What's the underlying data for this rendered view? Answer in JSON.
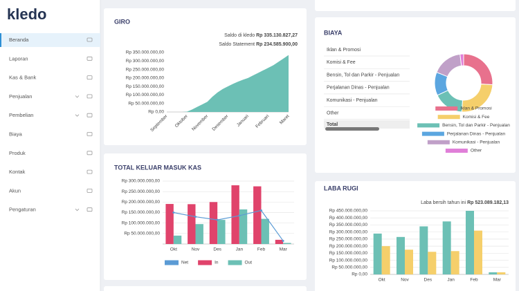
{
  "sidebar": {
    "logo": "kledo",
    "menu": [
      "Beranda",
      "Laporan",
      "Kas & Bank",
      "Penjualan",
      "Pembelian",
      "Biaya",
      "Produk",
      "Kontak",
      "Akun",
      "Pengaturan"
    ],
    "active": 0
  },
  "chart_data": [
    {
      "type": "area",
      "title": "GIRO",
      "annotations": [
        {
          "label": "Saldo di kledo",
          "value": "Rp 335.130.827,27"
        },
        {
          "label": "Saldo Statement",
          "value": "Rp 234.585.900,00"
        }
      ],
      "categories": [
        "September",
        null,
        null,
        null,
        "Oktober",
        null,
        null,
        null,
        "November",
        null,
        null,
        null,
        "Desember",
        null,
        null,
        null,
        "Januari",
        null,
        null,
        null,
        "Februari",
        null,
        null,
        null,
        "Maret"
      ],
      "values": [
        0,
        0,
        0,
        0,
        2000000,
        15000000,
        30000000,
        45000000,
        60000000,
        90000000,
        115000000,
        135000000,
        150000000,
        165000000,
        178000000,
        190000000,
        200000000,
        215000000,
        230000000,
        245000000,
        260000000,
        275000000,
        295000000,
        315000000,
        335000000
      ],
      "color": "#6cc0b5",
      "ylim": [
        0,
        350000000
      ],
      "yticks": [
        {
          "value": 0,
          "label": "Rp 0,00"
        },
        {
          "value": 50000000,
          "label": "Rp 50.000.000,00"
        },
        {
          "value": 100000000,
          "label": "Rp 100.000.000,00"
        },
        {
          "value": 150000000,
          "label": "Rp 150.000.000,00"
        },
        {
          "value": 200000000,
          "label": "Rp 200.000.000,00"
        },
        {
          "value": 250000000,
          "label": "Rp 250.000.000,00"
        },
        {
          "value": 300000000,
          "label": "Rp 300.000.000,00"
        },
        {
          "value": 350000000,
          "label": "Rp 350.000.000,00"
        }
      ]
    },
    {
      "type": "pie",
      "title": "BIAYA",
      "categories": [
        "Iklan & Promosi",
        "Komisi & Fee",
        "Bensin, Tol dan Parkir - Penjualan",
        "Perjalanan Dinas - Penjualan",
        "Komunikasi - Penjualan",
        "Other"
      ],
      "values": [
        26,
        25,
        17,
        13,
        17,
        2
      ],
      "colors": [
        "#e8718d",
        "#f5cf6b",
        "#6cc0b5",
        "#5ba6e0",
        "#c0a0c8",
        "#e07fd8"
      ],
      "table_footer": "Total"
    },
    {
      "type": "bar",
      "title": "TOTAL KELUAR MASUK KAS",
      "categories": [
        "Okt",
        "Nov",
        "Des",
        "Jan",
        "Feb",
        "Mar"
      ],
      "series": [
        {
          "name": "Net",
          "color": "#5b9bd5",
          "type": "line",
          "values": [
            150000000,
            130000000,
            115000000,
            135000000,
            160000000,
            15000000
          ]
        },
        {
          "name": "In",
          "color": "#e0436b",
          "values": [
            191000000,
            190000000,
            200000000,
            280000000,
            275000000,
            20000000
          ]
        },
        {
          "name": "Out",
          "color": "#6cc0b5",
          "values": [
            40000000,
            95000000,
            115000000,
            165000000,
            120000000,
            5000000
          ]
        }
      ],
      "ylim": [
        0,
        300000000
      ],
      "yticks": [
        {
          "value": 50000000,
          "label": "Rp 50.000.000,00"
        },
        {
          "value": 100000000,
          "label": "Rp 100.000.000,00"
        },
        {
          "value": 150000000,
          "label": "Rp 150.000.000,00"
        },
        {
          "value": 200000000,
          "label": "Rp 200.000.000,00"
        },
        {
          "value": 250000000,
          "label": "Rp 250.000.000,00"
        },
        {
          "value": 300000000,
          "label": "Rp 300.000.000,00"
        }
      ],
      "grid": true,
      "legend": "bottom"
    },
    {
      "type": "bar",
      "title": "LABA RUGI",
      "annotations": [
        {
          "label": "Laba bersih tahun ini",
          "value": "Rp 523.089.182,13"
        }
      ],
      "categories": [
        "Okt",
        "Nov",
        "Des",
        "Jan",
        "Feb",
        "Mar"
      ],
      "series": [
        {
          "color": "#6cc0b5",
          "values": [
            289000000,
            265000000,
            340000000,
            375000000,
            450000000,
            15000000
          ]
        },
        {
          "color": "#f5cf6b",
          "values": [
            200000000,
            175000000,
            160000000,
            165000000,
            310000000,
            15000000
          ]
        }
      ],
      "ylim": [
        0,
        450000000
      ],
      "yticks": [
        {
          "value": 0,
          "label": "Rp 0,00"
        },
        {
          "value": 50000000,
          "label": "Rp 50.000.000,00"
        },
        {
          "value": 100000000,
          "label": "Rp 100.000.000,00"
        },
        {
          "value": 150000000,
          "label": "Rp 150.000.000,00"
        },
        {
          "value": 200000000,
          "label": "Rp 200.000.000,00"
        },
        {
          "value": 250000000,
          "label": "Rp 250.000.000,00"
        },
        {
          "value": 300000000,
          "label": "Rp 300.000.000,00"
        },
        {
          "value": 350000000,
          "label": "Rp 350.000.000,00"
        },
        {
          "value": 400000000,
          "label": "Rp 400.000.000,00"
        },
        {
          "value": 450000000,
          "label": "Rp 450.000.000,00"
        }
      ],
      "grid": true
    }
  ]
}
